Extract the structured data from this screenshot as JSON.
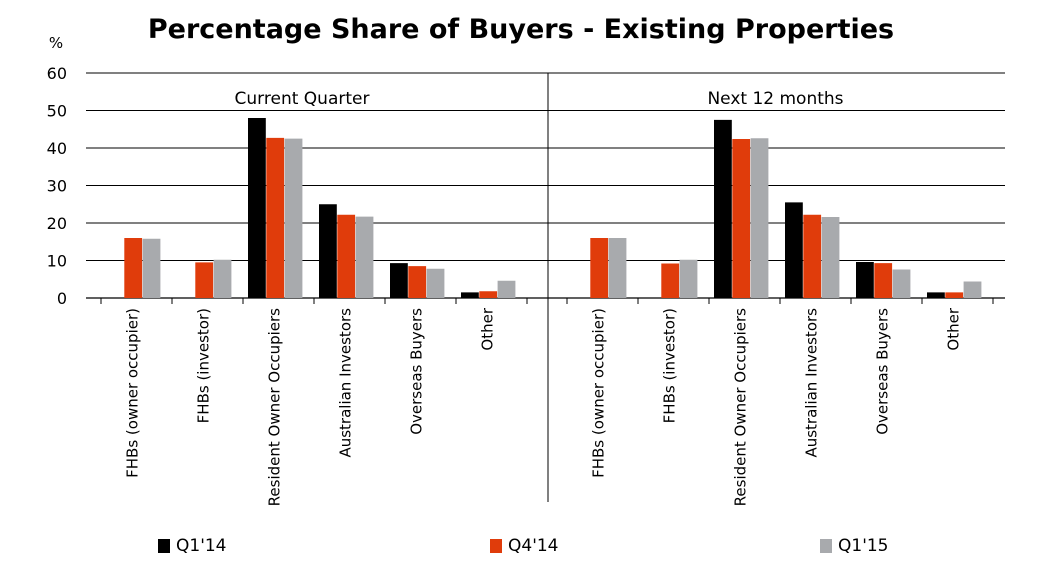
{
  "chart_data": {
    "type": "bar",
    "title": "Percentage Share of Buyers - Existing Properties",
    "ylabel": "%",
    "ylim": [
      0,
      60
    ],
    "yticks": [
      0,
      10,
      20,
      30,
      40,
      50,
      60
    ],
    "grid": true,
    "legend_position": "bottom",
    "panels": [
      {
        "label": "Current Quarter",
        "categories": [
          "FHBs (owner occupier)",
          "FHBs (investor)",
          "Resident Owner Occupiers",
          "Australian Investors",
          "Overseas Buyers",
          "Other"
        ]
      },
      {
        "label": "Next 12 months",
        "categories": [
          "FHBs (owner occupier)",
          "FHBs (investor)",
          "Resident Owner Occupiers",
          "Australian Investors",
          "Overseas Buyers",
          "Other"
        ]
      }
    ],
    "series": [
      {
        "name": "Q1'14",
        "color": "#000000",
        "panel_values": [
          [
            0,
            0,
            48,
            25,
            9.3,
            1.5
          ],
          [
            0,
            0,
            47.5,
            25.5,
            9.6,
            1.5
          ]
        ]
      },
      {
        "name": "Q4'14",
        "color": "#e03c0b",
        "panel_values": [
          [
            16,
            9.5,
            42.7,
            22.2,
            8.5,
            1.8
          ],
          [
            16,
            9.2,
            42.4,
            22.2,
            9.3,
            1.5
          ]
        ]
      },
      {
        "name": "Q1'15",
        "color": "#a8aaad",
        "panel_values": [
          [
            15.8,
            10.2,
            42.5,
            21.7,
            7.8,
            4.6
          ],
          [
            16,
            10.2,
            42.6,
            21.6,
            7.6,
            4.4
          ]
        ]
      }
    ]
  }
}
